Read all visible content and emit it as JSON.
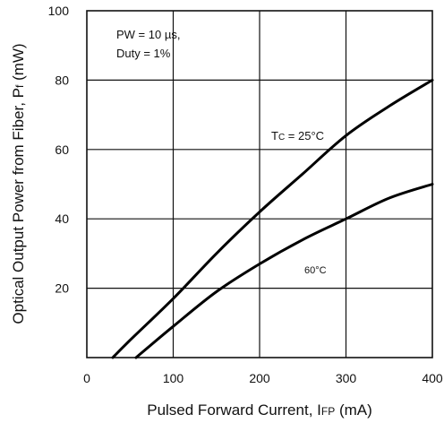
{
  "chart_data": {
    "type": "line",
    "xlabel_main": "Pulsed Forward Current, I",
    "xlabel_sub": "FP",
    "xlabel_unit": " (mA)",
    "ylabel_main": "Optical Output Power from Fiber, P",
    "ylabel_sub": "f",
    "ylabel_unit": " (mW)",
    "xlim": [
      0,
      400
    ],
    "ylim": [
      0,
      100
    ],
    "x_ticks": [
      0,
      100,
      200,
      300,
      400
    ],
    "y_ticks": [
      20,
      40,
      60,
      80,
      100
    ],
    "grid": true,
    "conditions": [
      "PW = 10 µs,",
      "Duty = 1%"
    ],
    "series": [
      {
        "name": "TC = 25°C",
        "label_prefix": "T",
        "label_sub": "C",
        "label_rest": " = 25°C",
        "x": [
          30,
          50,
          100,
          150,
          200,
          250,
          300,
          350,
          400
        ],
        "y": [
          0,
          5,
          17,
          30,
          42,
          53,
          64,
          72.5,
          80
        ]
      },
      {
        "name": "60°C",
        "label_prefix": "60°C",
        "label_sub": "",
        "label_rest": "",
        "x": [
          57,
          100,
          150,
          200,
          250,
          300,
          350,
          400
        ],
        "y": [
          0,
          9,
          19,
          27,
          34,
          40,
          46,
          50
        ]
      }
    ]
  }
}
